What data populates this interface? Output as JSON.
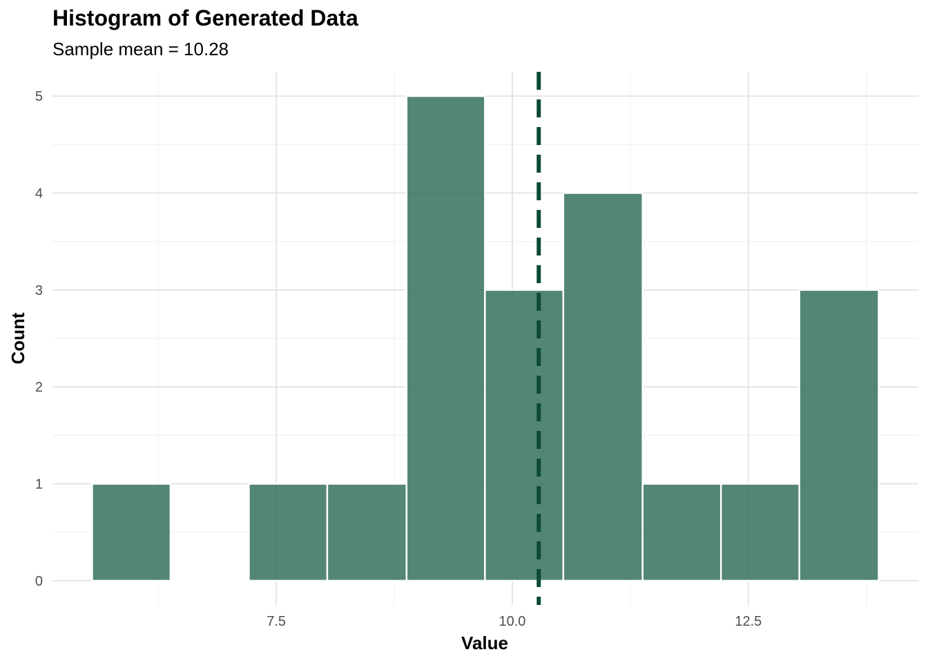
{
  "title": "Histogram of Generated Data",
  "subtitle": "Sample mean = 10.28",
  "colors": {
    "bar_fill": "#2e6b55",
    "bar_stroke": "#ffffff",
    "mean_line": "#0b4a33",
    "grid_major": "#e5e5e5",
    "grid_minor": "#f0f0f0"
  },
  "chart_data": {
    "type": "bar",
    "title": "Histogram of Generated Data",
    "subtitle": "Sample mean = 10.28",
    "xlabel": "Value",
    "ylabel": "Count",
    "bins": [
      {
        "start": 5.55,
        "end": 6.38,
        "count": 1
      },
      {
        "start": 6.38,
        "end": 7.21,
        "count": 0
      },
      {
        "start": 7.21,
        "end": 8.04,
        "count": 1
      },
      {
        "start": 8.04,
        "end": 8.88,
        "count": 1
      },
      {
        "start": 8.88,
        "end": 9.71,
        "count": 5
      },
      {
        "start": 9.71,
        "end": 10.54,
        "count": 3
      },
      {
        "start": 10.54,
        "end": 11.38,
        "count": 4
      },
      {
        "start": 11.38,
        "end": 12.21,
        "count": 1
      },
      {
        "start": 12.21,
        "end": 13.04,
        "count": 1
      },
      {
        "start": 13.04,
        "end": 13.88,
        "count": 3
      }
    ],
    "mean": 10.28,
    "xlim": [
      5.13,
      14.3
    ],
    "ylim": [
      -0.25,
      5.25
    ],
    "x_ticks": [
      {
        "value": 7.5,
        "label": "7.5"
      },
      {
        "value": 10.0,
        "label": "10.0"
      },
      {
        "value": 12.5,
        "label": "12.5"
      }
    ],
    "y_ticks": [
      {
        "value": 0,
        "label": "0"
      },
      {
        "value": 1,
        "label": "1"
      },
      {
        "value": 2,
        "label": "2"
      },
      {
        "value": 3,
        "label": "3"
      },
      {
        "value": 4,
        "label": "4"
      },
      {
        "value": 5,
        "label": "5"
      }
    ],
    "grid": true,
    "legend": "none"
  }
}
